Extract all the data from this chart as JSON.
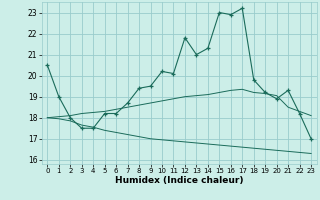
{
  "xlabel": "Humidex (Indice chaleur)",
  "bg_color": "#cceee8",
  "grid_color": "#99cccc",
  "line_color": "#1a6b5a",
  "x_ticks": [
    0,
    1,
    2,
    3,
    4,
    5,
    6,
    7,
    8,
    9,
    10,
    11,
    12,
    13,
    14,
    15,
    16,
    17,
    18,
    19,
    20,
    21,
    22,
    23
  ],
  "ylim": [
    15.8,
    23.5
  ],
  "xlim": [
    -0.5,
    23.5
  ],
  "yticks": [
    16,
    17,
    18,
    19,
    20,
    21,
    22,
    23
  ],
  "line1": [
    20.5,
    19.0,
    18.0,
    17.5,
    17.5,
    18.2,
    18.2,
    18.7,
    19.4,
    19.5,
    20.2,
    20.1,
    21.8,
    21.0,
    21.3,
    23.0,
    22.9,
    23.2,
    19.8,
    19.2,
    18.9,
    19.3,
    18.2,
    17.0
  ],
  "line2_upper": [
    18.0,
    18.05,
    18.1,
    18.2,
    18.25,
    18.3,
    18.4,
    18.5,
    18.6,
    18.7,
    18.8,
    18.9,
    19.0,
    19.05,
    19.1,
    19.2,
    19.3,
    19.35,
    19.2,
    19.15,
    19.05,
    18.5,
    18.3,
    18.1
  ],
  "line2_lower": [
    18.0,
    17.95,
    17.85,
    17.65,
    17.55,
    17.4,
    17.3,
    17.2,
    17.1,
    17.0,
    16.95,
    16.9,
    16.85,
    16.8,
    16.75,
    16.7,
    16.65,
    16.6,
    16.55,
    16.5,
    16.45,
    16.4,
    16.35,
    16.3
  ]
}
